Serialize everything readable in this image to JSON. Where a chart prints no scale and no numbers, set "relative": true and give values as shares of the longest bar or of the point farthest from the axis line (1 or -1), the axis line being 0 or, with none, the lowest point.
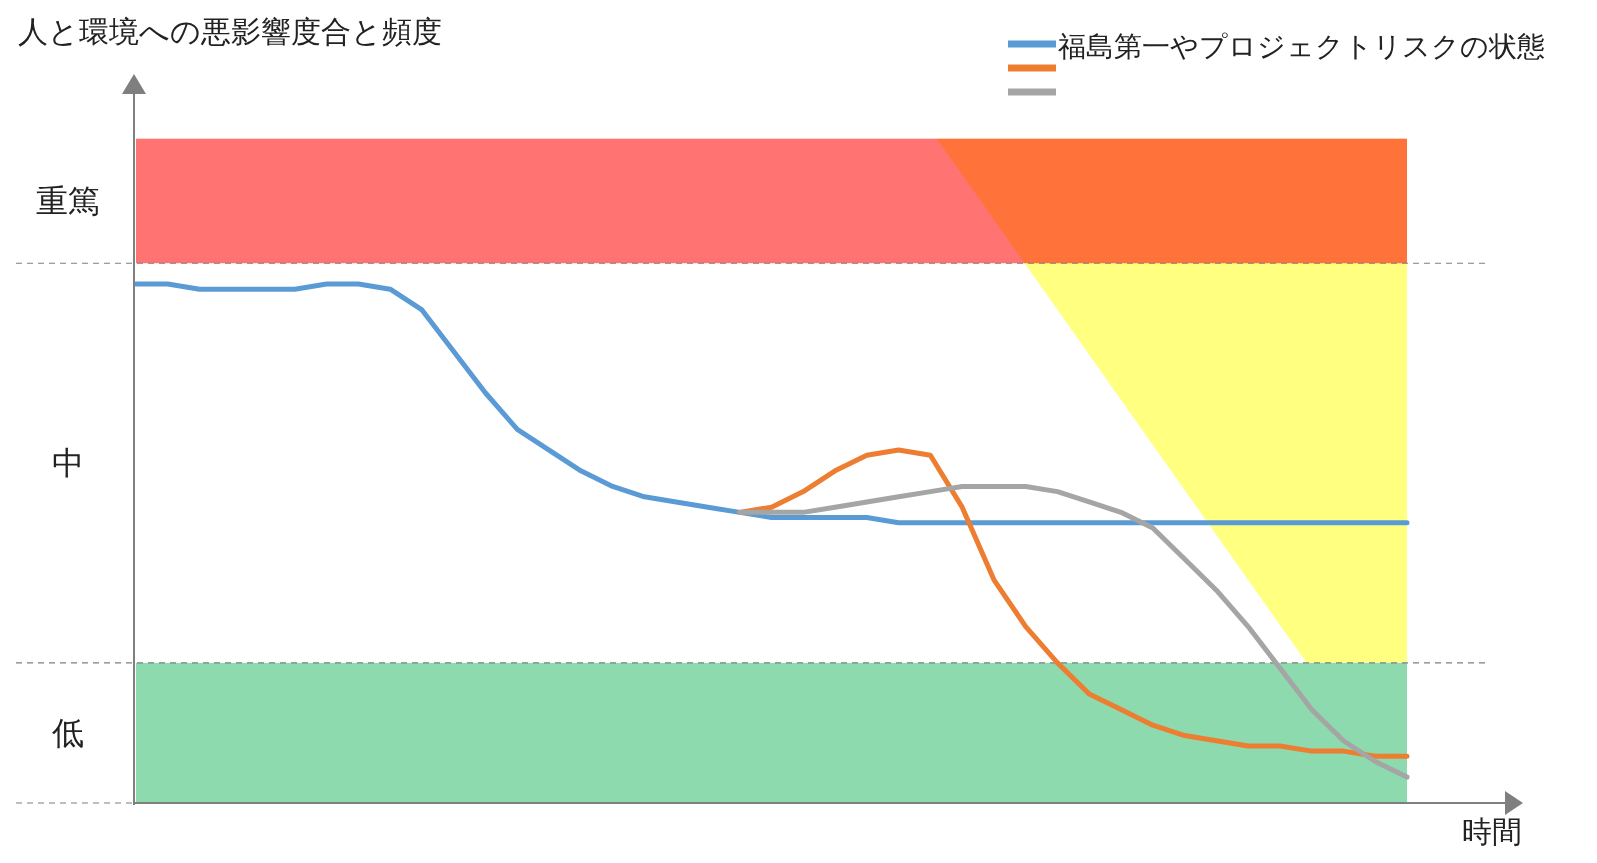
{
  "chart_data": {
    "type": "line",
    "relative": true,
    "annotations": [
      "人と環境への悪影響度合と頻度",
      "中"
    ],
    "xlabel": "時間",
    "categories": [
      null,
      null,
      null,
      null,
      null,
      null,
      null,
      null,
      null,
      null,
      null,
      null,
      null,
      null,
      null,
      null,
      null,
      null,
      null,
      null,
      null,
      null,
      null,
      null,
      null,
      null,
      null,
      null,
      null,
      null,
      null,
      null,
      null,
      null,
      null,
      null,
      null,
      null,
      null,
      null,
      null
    ],
    "series": [
      {
        "name": "福島第一やプロジェクトリスクの状態",
        "color": "#5b9bd5",
        "values": [
          1.0,
          1.0,
          0.99,
          0.99,
          0.99,
          0.99,
          1.0,
          1.0,
          0.99,
          0.95,
          0.87,
          0.79,
          0.72,
          0.68,
          0.64,
          0.61,
          0.59,
          0.58,
          0.57,
          0.56,
          0.55,
          0.55,
          0.55,
          0.55,
          0.54,
          0.54,
          0.54,
          0.54,
          0.54,
          0.54,
          0.54,
          0.54,
          0.54,
          0.54,
          0.54,
          0.54,
          0.54,
          0.54,
          0.54,
          0.54,
          0.54
        ]
      },
      {
        "color": "#ed7d31",
        "values": [
          null,
          null,
          null,
          null,
          null,
          null,
          null,
          null,
          null,
          null,
          null,
          null,
          null,
          null,
          null,
          null,
          null,
          null,
          null,
          0.56,
          0.57,
          0.6,
          0.64,
          0.67,
          0.68,
          0.67,
          0.57,
          0.43,
          0.34,
          0.27,
          0.21,
          0.18,
          0.15,
          0.13,
          0.12,
          0.11,
          0.11,
          0.1,
          0.1,
          0.09,
          0.09
        ]
      },
      {
        "color": "#a5a5a5",
        "values": [
          null,
          null,
          null,
          null,
          null,
          null,
          null,
          null,
          null,
          null,
          null,
          null,
          null,
          null,
          null,
          null,
          null,
          null,
          null,
          0.56,
          0.56,
          0.56,
          0.57,
          0.58,
          0.59,
          0.6,
          0.61,
          0.61,
          0.61,
          0.6,
          0.58,
          0.56,
          0.53,
          0.47,
          0.41,
          0.34,
          0.26,
          0.18,
          0.12,
          0.08,
          0.05
        ]
      }
    ],
    "bands": [
      {
        "axis": "y",
        "from": 1.04,
        "to": 1.28,
        "label": "重篤",
        "color": "#ff0000"
      },
      {
        "axis": "y",
        "from": 0,
        "to": 0.27,
        "label": "低",
        "color": "#8cdaae"
      }
    ],
    "ref_lines": [
      {
        "axis": "y",
        "value": 0,
        "line_style": "dashed",
        "color": "#7f7f7f"
      },
      {
        "axis": "y",
        "value": 0.27,
        "line_style": "dashed",
        "color": "#7f7f7f"
      },
      {
        "axis": "y",
        "value": 1.04,
        "line_style": "dashed",
        "color": "#7f7f7f"
      }
    ],
    "legend": "top right"
  }
}
